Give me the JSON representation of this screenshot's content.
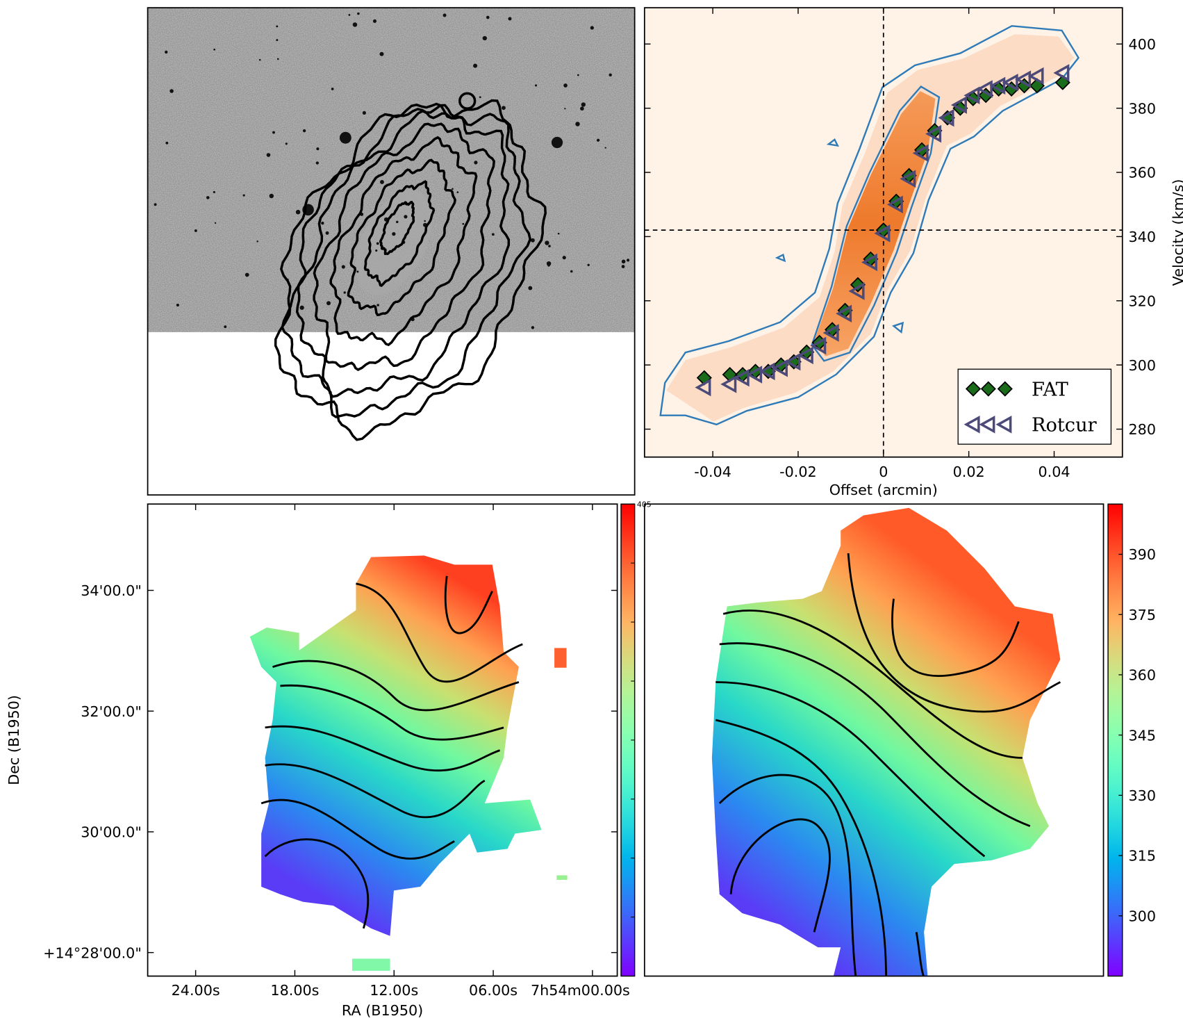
{
  "chart_data": [
    {
      "type": "image"
    },
    {
      "type": "scatter",
      "xlabel": "Offset (arcmin)",
      "ylabel": "Velocity (km/s)",
      "xlim": [
        -0.056,
        0.056
      ],
      "ylim": [
        271.3,
        411.3
      ],
      "xticks": [
        -0.04,
        -0.02,
        0,
        0.02,
        0.04
      ],
      "yticks": [
        280,
        300,
        320,
        340,
        360,
        380,
        400
      ],
      "ytick_side": "right",
      "vlines": [
        0
      ],
      "hlines": [
        342
      ],
      "legend": "lower right",
      "series": [
        {
          "name": "FAT",
          "color": "#1a6b1a",
          "marker": "diamond",
          "x": [
            -0.042,
            -0.036,
            -0.033,
            -0.03,
            -0.027,
            -0.024,
            -0.021,
            -0.018,
            -0.015,
            -0.012,
            -0.009,
            -0.006,
            -0.003,
            0.0,
            0.003,
            0.006,
            0.009,
            0.012,
            0.015,
            0.018,
            0.021,
            0.024,
            0.027,
            0.03,
            0.033,
            0.036,
            0.042
          ],
          "values": [
            296,
            297,
            297,
            298,
            298,
            300,
            301,
            304,
            307,
            311,
            317,
            325,
            333,
            342,
            351,
            359,
            367,
            373,
            377,
            380,
            383,
            384,
            386,
            386,
            387,
            387,
            388
          ]
        },
        {
          "name": "Rotcur",
          "color": "#4c4a78",
          "marker": "triangle-left",
          "x": [
            -0.042,
            -0.036,
            -0.033,
            -0.03,
            -0.027,
            -0.024,
            -0.021,
            -0.018,
            -0.015,
            -0.012,
            -0.009,
            -0.006,
            -0.003,
            0.0,
            0.003,
            0.006,
            0.009,
            0.012,
            0.015,
            0.018,
            0.021,
            0.024,
            0.027,
            0.03,
            0.033,
            0.036,
            0.042
          ],
          "values": [
            293,
            294,
            296,
            297,
            298,
            299,
            301,
            303,
            306,
            310,
            316,
            323,
            332,
            341,
            350,
            358,
            366,
            372,
            377,
            381,
            384,
            386,
            387,
            388,
            389,
            390,
            391
          ]
        }
      ]
    },
    {
      "type": "velocity_field",
      "xlabel": "RA (B1950)",
      "ylabel": "Dec (B1950)",
      "xlim": [
        26.9,
        -1.5
      ],
      "ylim": [
        27.61,
        35.43
      ],
      "xticks": [
        {
          "value": 24,
          "label": "24.00s"
        },
        {
          "value": 18,
          "label": "18.00s"
        },
        {
          "value": 12,
          "label": "12.00s"
        },
        {
          "value": 6,
          "label": "06.00s"
        },
        {
          "value": 0,
          "label": "7h54m00.00s"
        }
      ],
      "yticks": [
        {
          "value": 34,
          "label": "34'00.0\""
        },
        {
          "value": 32,
          "label": "32'00.0\""
        },
        {
          "value": 30,
          "label": "30'00.0\""
        },
        {
          "value": 28,
          "label": "+14°28'00.0\""
        }
      ],
      "colorbar": {
        "clim": [
          285,
          405
        ],
        "ticks": [
          405
        ]
      }
    },
    {
      "type": "velocity_field",
      "colorbar": {
        "clim": [
          285,
          402.5
        ],
        "ticks": [
          300,
          315,
          330,
          345,
          360,
          375,
          390
        ]
      }
    }
  ]
}
